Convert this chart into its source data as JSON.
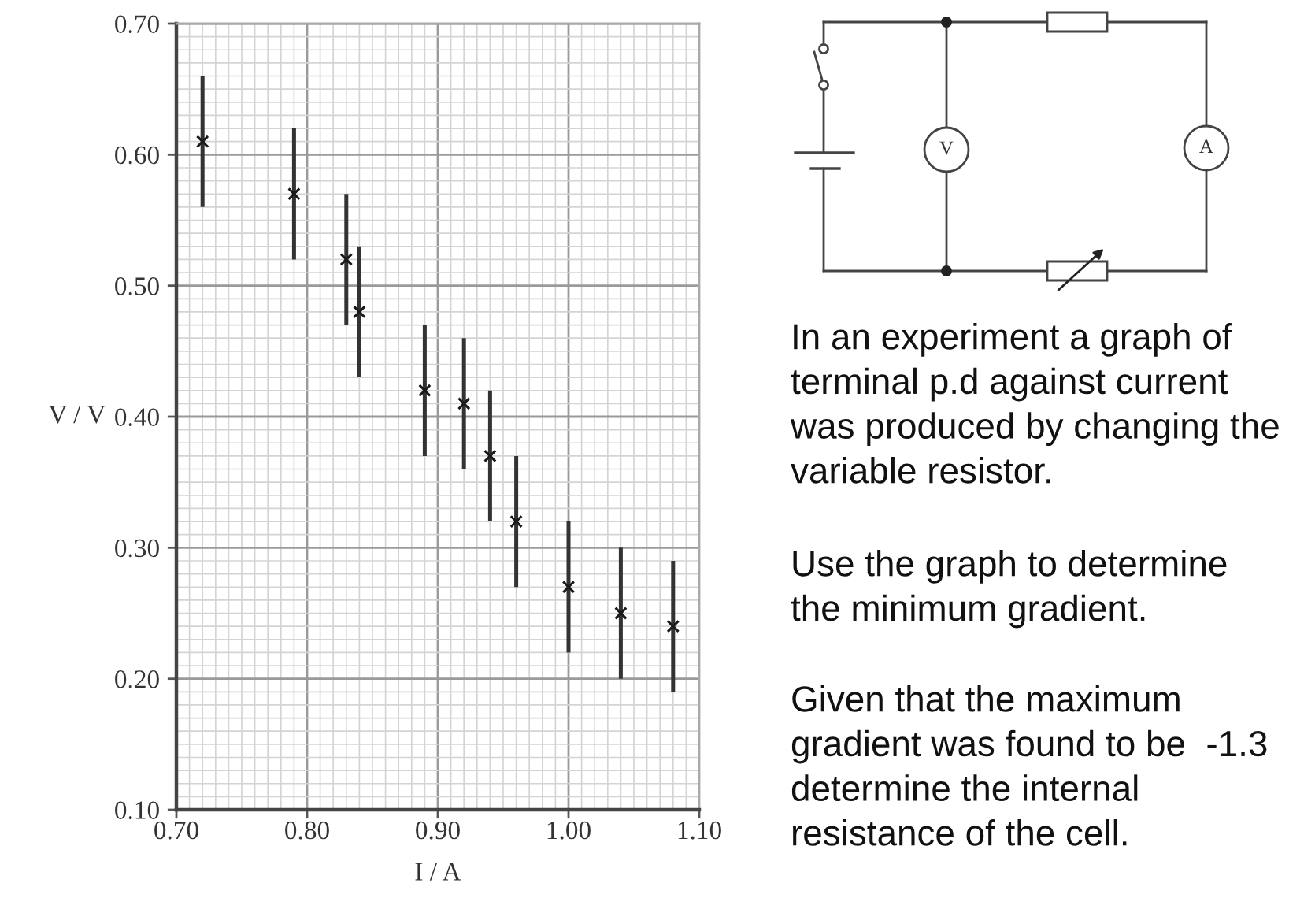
{
  "chart_data": {
    "type": "scatter",
    "xlabel": "I / A",
    "ylabel": "V / V",
    "x": [
      0.72,
      0.79,
      0.83,
      0.84,
      0.89,
      0.92,
      0.94,
      0.96,
      1.0,
      1.04,
      1.08
    ],
    "values": [
      0.61,
      0.57,
      0.52,
      0.48,
      0.42,
      0.41,
      0.37,
      0.32,
      0.27,
      0.25,
      0.24
    ],
    "errors": [
      0.05,
      0.05,
      0.05,
      0.05,
      0.05,
      0.05,
      0.05,
      0.05,
      0.05,
      0.05,
      0.05
    ],
    "color": "#1a1a1a",
    "marker": "cross",
    "xlim": [
      0.7,
      1.1
    ],
    "xticks": [
      {
        "value": 0.7,
        "label": "0.70"
      },
      {
        "value": 0.8,
        "label": "0.80"
      },
      {
        "value": 0.9,
        "label": "0.90"
      },
      {
        "value": 1.0,
        "label": "1.00"
      },
      {
        "value": 1.1,
        "label": "1.10"
      }
    ],
    "ylim": [
      0.1,
      0.7
    ],
    "yticks": [
      {
        "value": 0.1,
        "label": "0.10"
      },
      {
        "value": 0.2,
        "label": "0.20"
      },
      {
        "value": 0.3,
        "label": "0.30"
      },
      {
        "value": 0.4,
        "label": "0.40"
      },
      {
        "value": 0.5,
        "label": "0.50"
      },
      {
        "value": 0.6,
        "label": "0.60"
      },
      {
        "value": 0.7,
        "label": "0.70"
      }
    ],
    "grid": true,
    "annotations": [
      "V",
      "A",
      "In an experiment a graph of\nterminal p.d against current\nwas produced by changing the\nvariable resistor.",
      "Use the graph to determine\nthe minimum gradient.",
      "Given that the maximum\ngradient was found to be  -1.3\ndetermine the internal\nresistance of the cell."
    ]
  }
}
